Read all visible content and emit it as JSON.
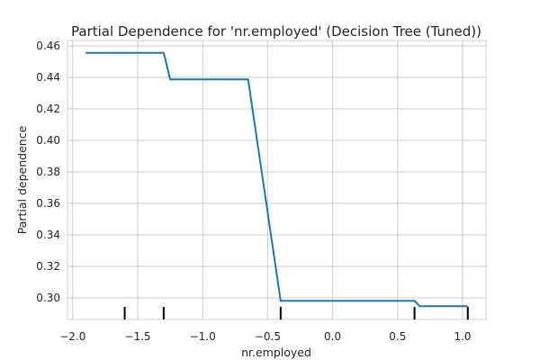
{
  "chart_data": {
    "type": "line",
    "title": "Partial Dependence for 'nr.employed' (Decision Tree (Tuned))",
    "xlabel": "nr.employed",
    "ylabel": "Partial dependence",
    "xlim": [
      -2.04,
      1.18
    ],
    "ylim": [
      0.2863,
      0.4634
    ],
    "x_ticks": [
      -2.0,
      -1.5,
      -1.0,
      -0.5,
      0.0,
      0.5,
      1.0
    ],
    "x_tick_labels": [
      "−2.0",
      "−1.5",
      "−1.0",
      "−0.5",
      "0.0",
      "0.5",
      "1.0"
    ],
    "y_ticks": [
      0.3,
      0.32,
      0.34,
      0.36,
      0.38,
      0.4,
      0.42,
      0.44,
      0.46
    ],
    "y_tick_labels": [
      "0.30",
      "0.32",
      "0.34",
      "0.36",
      "0.38",
      "0.40",
      "0.42",
      "0.44",
      "0.46"
    ],
    "grid": true,
    "line_color": "#1f77b4",
    "series": [
      {
        "x": [
          -1.9,
          -1.3,
          -1.25,
          -0.65,
          -0.4,
          0.63,
          0.67,
          1.04
        ],
        "y": [
          0.4555,
          0.4555,
          0.4387,
          0.4387,
          0.2982,
          0.2982,
          0.2947,
          0.2947
        ]
      }
    ],
    "rug_x": [
      -1.6,
      -1.3,
      -0.4,
      0.63,
      1.04
    ]
  }
}
